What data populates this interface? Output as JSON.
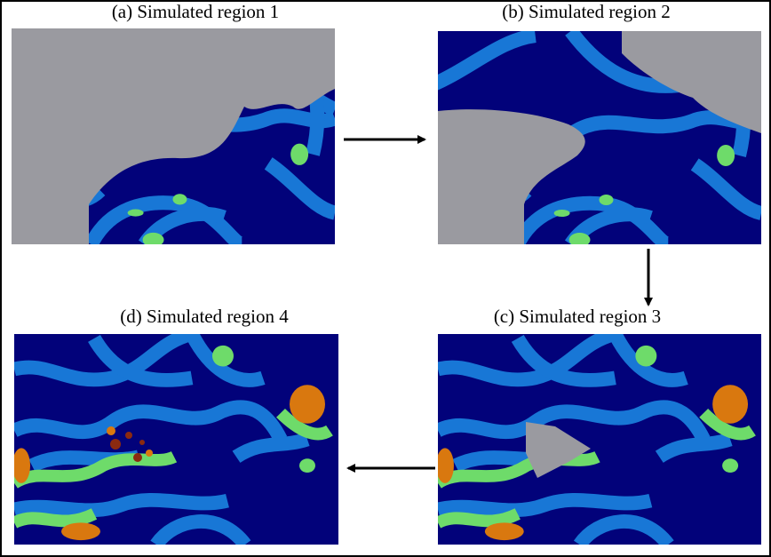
{
  "panels": [
    {
      "title": "(a) Simulated region 1"
    },
    {
      "title": "(b) Simulated region 2"
    },
    {
      "title": "(c) Simulated region 3"
    },
    {
      "title": "(d) Simulated region 4"
    }
  ]
}
